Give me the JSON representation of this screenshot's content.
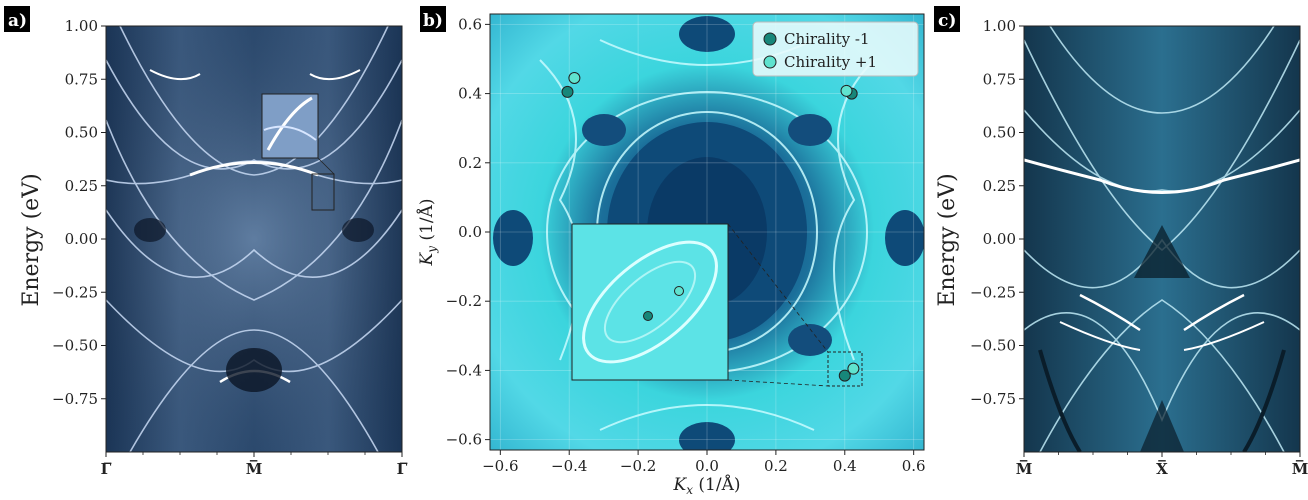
{
  "chart_data": [
    {
      "panel_label": "a)",
      "type": "heatmap",
      "ylabel": "Energy (eV)",
      "ylim": [
        -1.0,
        1.0
      ],
      "y_ticks": [
        "1.00",
        "0.75",
        "0.50",
        "0.25",
        "0.00",
        "−0.25",
        "−0.50",
        "−0.75"
      ],
      "x_ticks": [
        "Γ̅",
        "M̅",
        "Γ̅"
      ],
      "colormap": [
        "#0e1c32",
        "#1f3a5c",
        "#4f6f94",
        "#9fb9d8",
        "#eef4ff"
      ],
      "inset": true
    },
    {
      "panel_label": "b)",
      "type": "heatmap",
      "xlabel": "K_x (1/Å)",
      "ylabel": "K_y (1/Å)",
      "xlim": [
        -0.63,
        0.63
      ],
      "ylim": [
        -0.63,
        0.63
      ],
      "x_ticks": [
        "−0.6",
        "−0.4",
        "−0.2",
        "0.0",
        "0.2",
        "0.4",
        "0.6"
      ],
      "y_ticks": [
        "0.6",
        "0.4",
        "0.2",
        "0.0",
        "−0.2",
        "−0.4",
        "−0.6"
      ],
      "grid": true,
      "legend": [
        "Chirality -1",
        "Chirality +1"
      ],
      "legend_position": "top-right",
      "colors": {
        "chirality_minus": "#17877a",
        "chirality_plus": "#5fe3cf"
      },
      "series": [
        {
          "name": "Chirality -1",
          "points": [
            [
              -0.405,
              0.405
            ],
            [
              0.42,
              0.4
            ],
            [
              0.4,
              -0.415
            ]
          ]
        },
        {
          "name": "Chirality +1",
          "points": [
            [
              -0.385,
              0.445
            ],
            [
              0.405,
              0.408
            ],
            [
              0.425,
              -0.395
            ]
          ]
        }
      ],
      "inset": true
    },
    {
      "panel_label": "c)",
      "type": "heatmap",
      "ylabel": "Energy (eV)",
      "ylim": [
        -1.0,
        1.0
      ],
      "y_ticks": [
        "1.00",
        "0.75",
        "0.50",
        "0.25",
        "0.00",
        "−0.25",
        "−0.50",
        "−0.75"
      ],
      "x_ticks": [
        "M̅",
        "X̅",
        "M̅"
      ],
      "colormap": [
        "#0b2233",
        "#1b4d68",
        "#3f87a5",
        "#9ed6e8",
        "#eafaff"
      ]
    }
  ]
}
